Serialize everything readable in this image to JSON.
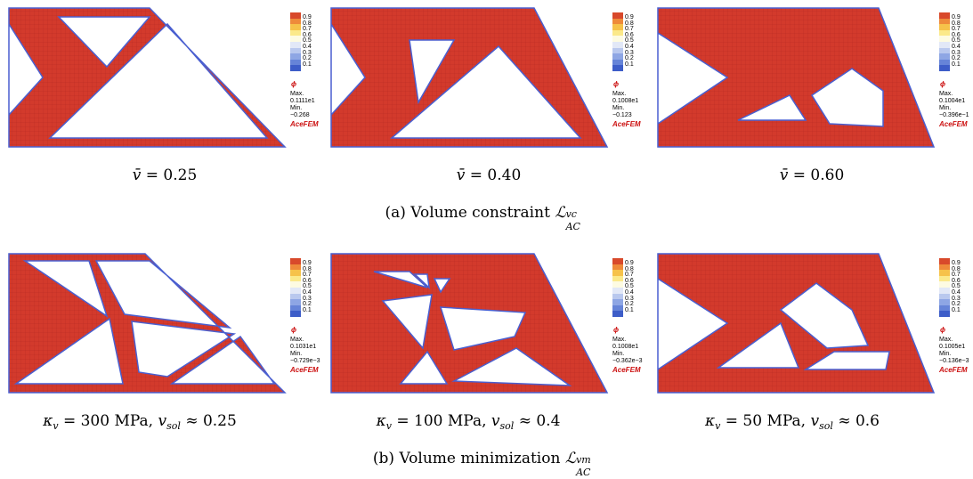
{
  "colorbar": {
    "ticks": [
      "0.9",
      "0.8",
      "0.7",
      "0.6",
      "0.5",
      "0.4",
      "0.3",
      "0.2",
      "0.1"
    ],
    "colors": [
      "#d8492b",
      "#ee8a3a",
      "#f6c24a",
      "#fbe98a",
      "#fdfbe2",
      "#e2e8f7",
      "#b9c8ee",
      "#8ea6e4",
      "#6684d8",
      "#3d5dc8"
    ],
    "symbol": "ϕ",
    "max_label": "Max.",
    "min_label": "Min.",
    "brand": "AceFEM"
  },
  "row_a": {
    "panels": [
      {
        "max": "0.1111e1",
        "min": "−0.268",
        "caption_lhs": "v̄",
        "caption_rhs": "= 0.25"
      },
      {
        "max": "0.1008e1",
        "min": "−0.123",
        "caption_lhs": "v̄",
        "caption_rhs": "= 0.40"
      },
      {
        "max": "0.1004e1",
        "min": "−0.396e−1",
        "caption_lhs": "v̄",
        "caption_rhs": "= 0.60"
      }
    ],
    "subcaption_prefix": "(a) Volume constraint",
    "subcaption_sym": "ℒ",
    "subcaption_sub": "AC",
    "subcaption_sup": "vc"
  },
  "row_b": {
    "panels": [
      {
        "max": "0.1031e1",
        "min": "−0.729e−3",
        "kappa": "κ",
        "kappa_sub": "v",
        "kappa_val": "= 300 MPa,",
        "v": "v",
        "v_sub": "sol",
        "v_val": "≈ 0.25"
      },
      {
        "max": "0.1008e1",
        "min": "−0.362e−3",
        "kappa": "κ",
        "kappa_sub": "v",
        "kappa_val": "= 100 MPa,",
        "v": "v",
        "v_sub": "sol",
        "v_val": "≈ 0.4"
      },
      {
        "max": "0.1005e1",
        "min": "−0.136e−3",
        "kappa": "κ",
        "kappa_sub": "v",
        "kappa_val": "= 50 MPa,",
        "v": "v",
        "v_sub": "sol",
        "v_val": "≈ 0.6"
      }
    ],
    "subcaption_prefix": "(b) Volume minimization",
    "subcaption_sym": "ℒ",
    "subcaption_sub": "AC",
    "subcaption_sup": "vm"
  }
}
